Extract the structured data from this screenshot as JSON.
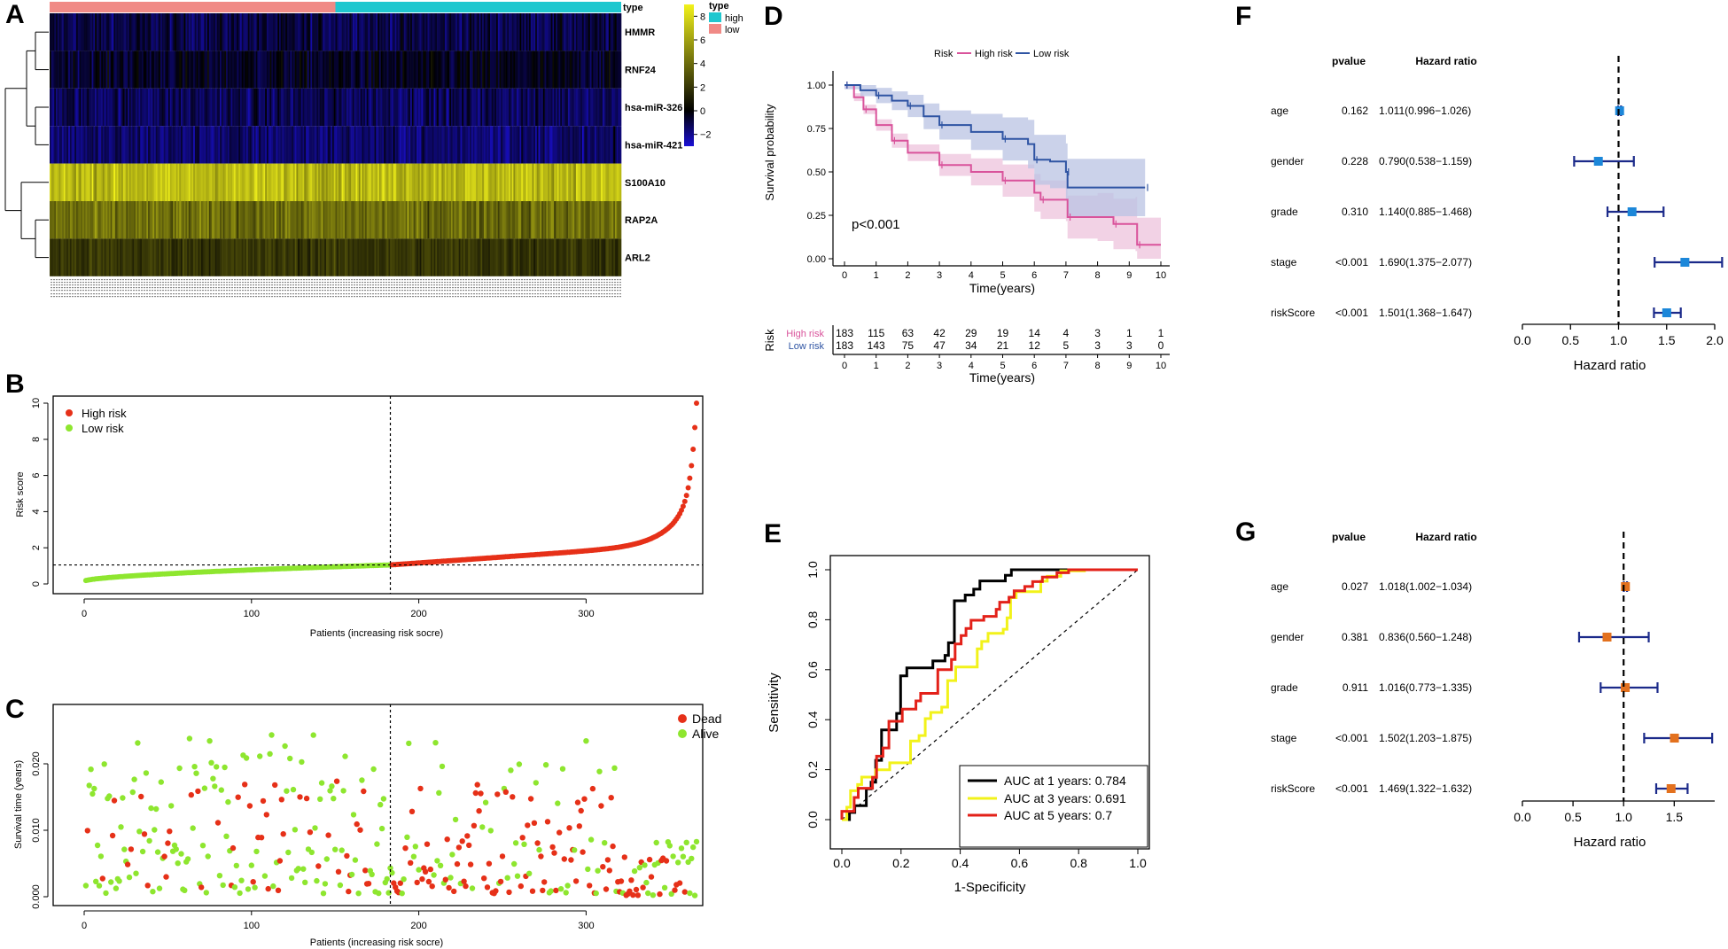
{
  "panel_letters": [
    "A",
    "B",
    "C",
    "D",
    "E",
    "F",
    "G"
  ],
  "chart_data": [
    {
      "panel": "A",
      "type": "heatmap",
      "rows": [
        "HMMR",
        "RNF24",
        "hsa-miR-326",
        "hsa-miR-421",
        "S100A10",
        "RAP2A",
        "ARL2"
      ],
      "row_mean_levels": [
        -1,
        -0.5,
        -1.2,
        -1.5,
        7,
        4,
        2
      ],
      "annotation_title": "type",
      "annotation_groups": [
        {
          "name": "low",
          "count": 183,
          "color": "#f08a86"
        },
        {
          "name": "high",
          "count": 183,
          "color": "#1fc7cf"
        }
      ],
      "color_scale": {
        "ticks": [
          "8",
          "6",
          "4",
          "2",
          "0",
          "−2"
        ],
        "min": -3,
        "max": 9,
        "low": "#1a0fd6",
        "mid": "#000000",
        "high": "#f2f21a"
      },
      "legend_title": "type",
      "legend_entries": [
        "high",
        "low"
      ]
    },
    {
      "panel": "B",
      "type": "scatter",
      "xlabel": "Patients (increasing risk socre)",
      "ylabel": "Risk score",
      "xlim": [
        0,
        366
      ],
      "ylim": [
        0,
        10
      ],
      "x_ticks": [
        "0",
        "100",
        "200",
        "300"
      ],
      "y_ticks": [
        "0",
        "2",
        "4",
        "6",
        "8",
        "10"
      ],
      "cutoff_x": 183,
      "cutoff_y": 1.05,
      "series": [
        {
          "name": "High risk",
          "color": "#e63018",
          "range": [
            184,
            366
          ]
        },
        {
          "name": "Low risk",
          "color": "#8ee62f",
          "range": [
            1,
            183
          ]
        }
      ],
      "max_score": 10.0
    },
    {
      "panel": "C",
      "type": "scatter",
      "xlabel": "Patients (increasing risk socre)",
      "ylabel": "Survival time (years)",
      "xlim": [
        0,
        366
      ],
      "ylim": [
        0,
        0.028
      ],
      "x_ticks": [
        "0",
        "100",
        "200",
        "300"
      ],
      "y_ticks": [
        "0.000",
        "0.010",
        "0.020"
      ],
      "cutoff_x": 183,
      "series": [
        {
          "name": "Dead",
          "color": "#e63018"
        },
        {
          "name": "Alive",
          "color": "#8ee62f"
        }
      ]
    },
    {
      "panel": "D",
      "type": "line",
      "legend_title": "Risk",
      "series": [
        {
          "name": "High risk",
          "color": "#d9539b",
          "points": [
            [
              0,
              1.0
            ],
            [
              0.3,
              0.93
            ],
            [
              0.6,
              0.86
            ],
            [
              1,
              0.77
            ],
            [
              1.5,
              0.68
            ],
            [
              2,
              0.61
            ],
            [
              3,
              0.54
            ],
            [
              4,
              0.5
            ],
            [
              5,
              0.45
            ],
            [
              6,
              0.38
            ],
            [
              6.2,
              0.34
            ],
            [
              7,
              0.34
            ],
            [
              7.05,
              0.24
            ],
            [
              8,
              0.24
            ],
            [
              8.5,
              0.2
            ],
            [
              9.2,
              0.2
            ],
            [
              9.25,
              0.08
            ],
            [
              10,
              0.08
            ]
          ]
        },
        {
          "name": "Low risk",
          "color": "#2f54a3",
          "points": [
            [
              0,
              1.0
            ],
            [
              0.5,
              0.97
            ],
            [
              1,
              0.94
            ],
            [
              1.5,
              0.91
            ],
            [
              2,
              0.88
            ],
            [
              2.5,
              0.82
            ],
            [
              3,
              0.77
            ],
            [
              4,
              0.73
            ],
            [
              5,
              0.69
            ],
            [
              5.8,
              0.66
            ],
            [
              6,
              0.57
            ],
            [
              6.5,
              0.56
            ],
            [
              7,
              0.5
            ],
            [
              7.05,
              0.41
            ],
            [
              9.5,
              0.41
            ]
          ]
        }
      ],
      "xlabel": "Time(years)",
      "ylabel": "Survival probability",
      "x_ticks": [
        "0",
        "1",
        "2",
        "3",
        "4",
        "5",
        "6",
        "7",
        "8",
        "9",
        "10"
      ],
      "y_ticks": [
        "0.00",
        "0.25",
        "0.50",
        "0.75",
        "1.00"
      ],
      "xlim": [
        0,
        10
      ],
      "ylim": [
        0,
        1
      ],
      "pvalue_text": "p<0.001",
      "risk_table": {
        "title": "Risk",
        "rows": [
          {
            "label": "High risk",
            "color": "#d9539b",
            "values": [
              "183",
              "115",
              "63",
              "42",
              "29",
              "19",
              "14",
              "4",
              "3",
              "1",
              "1"
            ]
          },
          {
            "label": "Low risk",
            "color": "#2f54a3",
            "values": [
              "183",
              "143",
              "75",
              "47",
              "34",
              "21",
              "12",
              "5",
              "3",
              "3",
              "0"
            ]
          }
        ],
        "xlabel": "Time(years)"
      }
    },
    {
      "panel": "E",
      "type": "line",
      "xlabel": "1-Specificity",
      "ylabel": "Sensitivity",
      "xlim": [
        0,
        1
      ],
      "ylim": [
        0,
        1
      ],
      "x_ticks": [
        "0.0",
        "0.2",
        "0.4",
        "0.6",
        "0.8",
        "1.0"
      ],
      "y_ticks": [
        "0.0",
        "0.2",
        "0.4",
        "0.6",
        "0.8",
        "1.0"
      ],
      "series": [
        {
          "name": "AUC at 1 years: 0.784",
          "color": "#000000",
          "auc": 0.784
        },
        {
          "name": "AUC at 3 years: 0.691",
          "color": "#f2f21a",
          "auc": 0.691
        },
        {
          "name": "AUC at 5 years: 0.7",
          "color": "#e32119",
          "auc": 0.7
        }
      ]
    },
    {
      "panel": "F",
      "type": "forest",
      "header_pvalue": "pvalue",
      "header_hr": "Hazard ratio",
      "xlabel": "Hazard ratio",
      "x_ticks": [
        "0.0",
        "0.5",
        "1.0",
        "1.5",
        "2.0"
      ],
      "xlim": [
        0,
        2
      ],
      "marker_color": "#1c87d9",
      "rows": [
        {
          "name": "age",
          "pvalue": "0.162",
          "hr_text": "1.011(0.996−1.026)",
          "hr": 1.011,
          "lo": 0.996,
          "hi": 1.026
        },
        {
          "name": "gender",
          "pvalue": "0.228",
          "hr_text": "0.790(0.538−1.159)",
          "hr": 0.79,
          "lo": 0.538,
          "hi": 1.159
        },
        {
          "name": "grade",
          "pvalue": "0.310",
          "hr_text": "1.140(0.885−1.468)",
          "hr": 1.14,
          "lo": 0.885,
          "hi": 1.468
        },
        {
          "name": "stage",
          "pvalue": "<0.001",
          "hr_text": "1.690(1.375−2.077)",
          "hr": 1.69,
          "lo": 1.375,
          "hi": 2.077
        },
        {
          "name": "riskScore",
          "pvalue": "<0.001",
          "hr_text": "1.501(1.368−1.647)",
          "hr": 1.501,
          "lo": 1.368,
          "hi": 1.647
        }
      ]
    },
    {
      "panel": "G",
      "type": "forest",
      "header_pvalue": "pvalue",
      "header_hr": "Hazard ratio",
      "xlabel": "Hazard ratio",
      "x_ticks": [
        "0.0",
        "0.5",
        "1.0",
        "1.5"
      ],
      "xlim": [
        0,
        1.9
      ],
      "marker_color": "#e3711e",
      "rows": [
        {
          "name": "age",
          "pvalue": "0.027",
          "hr_text": "1.018(1.002−1.034)",
          "hr": 1.018,
          "lo": 1.002,
          "hi": 1.034
        },
        {
          "name": "gender",
          "pvalue": "0.381",
          "hr_text": "0.836(0.560−1.248)",
          "hr": 0.836,
          "lo": 0.56,
          "hi": 1.248
        },
        {
          "name": "grade",
          "pvalue": "0.911",
          "hr_text": "1.016(0.773−1.335)",
          "hr": 1.016,
          "lo": 0.773,
          "hi": 1.335
        },
        {
          "name": "stage",
          "pvalue": "<0.001",
          "hr_text": "1.502(1.203−1.875)",
          "hr": 1.502,
          "lo": 1.203,
          "hi": 1.875
        },
        {
          "name": "riskScore",
          "pvalue": "<0.001",
          "hr_text": "1.469(1.322−1.632)",
          "hr": 1.469,
          "lo": 1.322,
          "hi": 1.632
        }
      ]
    }
  ]
}
